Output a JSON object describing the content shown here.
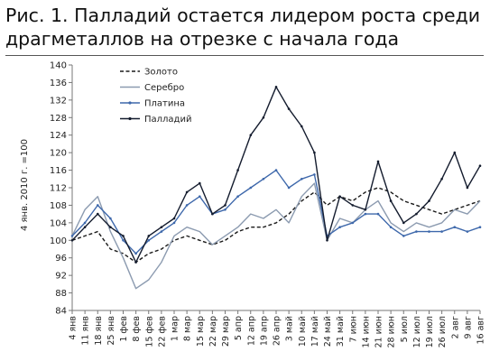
{
  "title": {
    "line1": "Рис. 1. Палладий остается лидером роста среди",
    "line2": "драгметаллов на отрезке с начала года"
  },
  "chart_data": {
    "type": "line",
    "ylabel": "4 янв. 2010 г. =100",
    "ylim": [
      84,
      140
    ],
    "yticks": [
      84,
      88,
      92,
      96,
      100,
      104,
      108,
      112,
      116,
      120,
      124,
      128,
      132,
      136,
      140
    ],
    "xlim": [
      "2010-01-04",
      "2010-08-16"
    ],
    "xticks": [
      "4 янв",
      "11 янв",
      "18 янв",
      "25 янв",
      "1 фев",
      "8 фев",
      "15 фев",
      "22 фев",
      "1 мар",
      "8 мар",
      "15 мар",
      "22 мар",
      "29 мар",
      "5 апр",
      "12 апр",
      "19 апр",
      "26 апр",
      "3 май",
      "10 май",
      "17 май",
      "24 май",
      "31 май",
      "7 июн",
      "14 июн",
      "21 июн",
      "28 июн",
      "5 июл",
      "12 июл",
      "19 июл",
      "26 июл",
      "2 авг",
      "9 авг",
      "16 авг"
    ],
    "grid": false,
    "legend": "top-left",
    "series": [
      {
        "name": "Золото",
        "color": "#1a1a1a",
        "style": "dashed",
        "x": [
          "2010-01-04",
          "2010-01-11",
          "2010-01-18",
          "2010-01-25",
          "2010-02-01",
          "2010-02-08",
          "2010-02-15",
          "2010-02-22",
          "2010-03-01",
          "2010-03-08",
          "2010-03-15",
          "2010-03-22",
          "2010-03-29",
          "2010-04-05",
          "2010-04-12",
          "2010-04-19",
          "2010-04-26",
          "2010-05-03",
          "2010-05-10",
          "2010-05-17",
          "2010-05-24",
          "2010-05-31",
          "2010-06-07",
          "2010-06-14",
          "2010-06-21",
          "2010-06-28",
          "2010-07-05",
          "2010-07-12",
          "2010-07-19",
          "2010-07-26",
          "2010-08-02",
          "2010-08-09",
          "2010-08-16"
        ],
        "values": [
          100,
          101,
          102,
          98,
          97,
          95,
          97,
          98,
          100,
          101,
          100,
          99,
          100,
          102,
          103,
          103,
          104,
          106,
          109,
          111,
          108,
          110,
          109,
          111,
          112,
          111,
          109,
          108,
          107,
          106,
          107,
          108,
          109
        ]
      },
      {
        "name": "Серебро",
        "color": "#8c9bb0",
        "style": "solid",
        "x": [
          "2010-01-04",
          "2010-01-11",
          "2010-01-18",
          "2010-01-25",
          "2010-02-01",
          "2010-02-08",
          "2010-02-15",
          "2010-02-22",
          "2010-03-01",
          "2010-03-08",
          "2010-03-15",
          "2010-03-22",
          "2010-03-29",
          "2010-04-05",
          "2010-04-12",
          "2010-04-19",
          "2010-04-26",
          "2010-05-03",
          "2010-05-10",
          "2010-05-17",
          "2010-05-24",
          "2010-05-31",
          "2010-06-07",
          "2010-06-14",
          "2010-06-21",
          "2010-06-28",
          "2010-07-05",
          "2010-07-12",
          "2010-07-19",
          "2010-07-26",
          "2010-08-02",
          "2010-08-09",
          "2010-08-16"
        ],
        "values": [
          101,
          107,
          110,
          102,
          96,
          89,
          91,
          95,
          101,
          103,
          102,
          99,
          101,
          103,
          106,
          105,
          107,
          104,
          110,
          113,
          100,
          105,
          104,
          107,
          109,
          104,
          102,
          104,
          103,
          104,
          107,
          106,
          109
        ]
      },
      {
        "name": "Платина",
        "color": "#3e68ab",
        "style": "solid",
        "x": [
          "2010-01-04",
          "2010-01-11",
          "2010-01-18",
          "2010-01-25",
          "2010-02-01",
          "2010-02-08",
          "2010-02-15",
          "2010-02-22",
          "2010-03-01",
          "2010-03-08",
          "2010-03-15",
          "2010-03-22",
          "2010-03-29",
          "2010-04-05",
          "2010-04-12",
          "2010-04-19",
          "2010-04-26",
          "2010-05-03",
          "2010-05-10",
          "2010-05-17",
          "2010-05-24",
          "2010-05-31",
          "2010-06-07",
          "2010-06-14",
          "2010-06-21",
          "2010-06-28",
          "2010-07-05",
          "2010-07-12",
          "2010-07-19",
          "2010-07-26",
          "2010-08-02",
          "2010-08-09",
          "2010-08-16"
        ],
        "values": [
          101,
          104,
          108,
          105,
          100,
          97,
          100,
          102,
          104,
          108,
          110,
          106,
          107,
          110,
          112,
          114,
          116,
          112,
          114,
          115,
          101,
          103,
          104,
          106,
          106,
          103,
          101,
          102,
          102,
          102,
          103,
          102,
          103
        ]
      },
      {
        "name": "Палладий",
        "color": "#141c2e",
        "style": "solid",
        "x": [
          "2010-01-04",
          "2010-01-11",
          "2010-01-18",
          "2010-01-25",
          "2010-02-01",
          "2010-02-08",
          "2010-02-15",
          "2010-02-22",
          "2010-03-01",
          "2010-03-08",
          "2010-03-15",
          "2010-03-22",
          "2010-03-29",
          "2010-04-05",
          "2010-04-12",
          "2010-04-19",
          "2010-04-26",
          "2010-05-03",
          "2010-05-10",
          "2010-05-17",
          "2010-05-24",
          "2010-05-31",
          "2010-06-07",
          "2010-06-14",
          "2010-06-21",
          "2010-06-28",
          "2010-07-05",
          "2010-07-12",
          "2010-07-19",
          "2010-07-26",
          "2010-08-02",
          "2010-08-09",
          "2010-08-16"
        ],
        "values": [
          100,
          103,
          106,
          103,
          101,
          95,
          101,
          103,
          105,
          111,
          113,
          106,
          108,
          116,
          124,
          128,
          135,
          130,
          126,
          120,
          100,
          110,
          108,
          107,
          118,
          109,
          104,
          106,
          109,
          114,
          120,
          112,
          117
        ]
      }
    ]
  }
}
